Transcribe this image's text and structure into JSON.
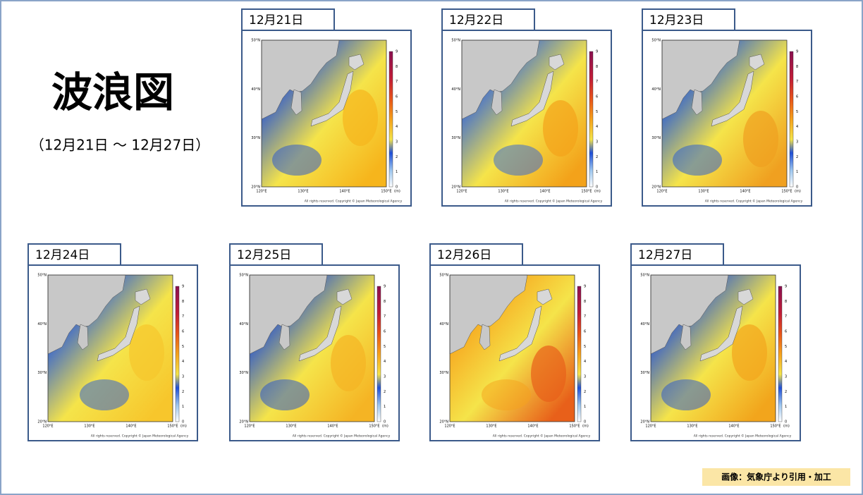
{
  "header": {
    "title": "波浪図",
    "subtitle": "（12月21日 ～ 12月27日）"
  },
  "panels": [
    {
      "date": "12月21日"
    },
    {
      "date": "12月22日"
    },
    {
      "date": "12月23日"
    },
    {
      "date": "12月24日"
    },
    {
      "date": "12月25日"
    },
    {
      "date": "12月26日"
    },
    {
      "date": "12月27日"
    }
  ],
  "map_axes": {
    "lat_labels": [
      "50°N",
      "40°N",
      "30°N",
      "20°N"
    ],
    "lon_labels": [
      "120°E",
      "130°E",
      "140°E",
      "150°E"
    ],
    "scale_ticks": [
      0,
      1,
      2,
      3,
      4,
      5,
      6,
      7,
      8,
      9
    ],
    "unit": "(m)",
    "copyright": "All rights reserved. Copyright © Japan Meteorological Agency"
  },
  "credit": "画像：気象庁より引用・加工"
}
